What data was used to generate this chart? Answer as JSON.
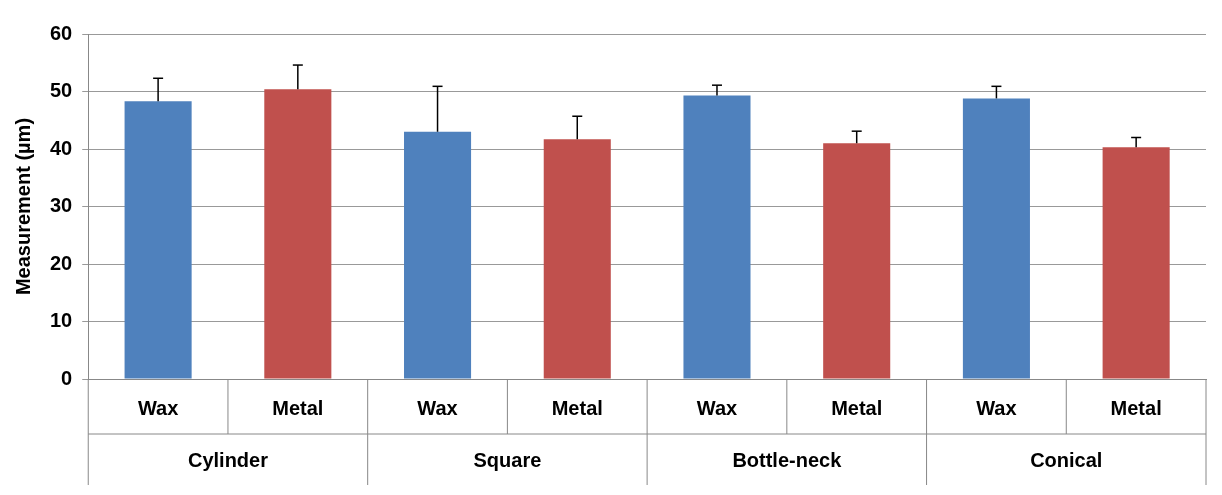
{
  "chart_data": {
    "type": "bar",
    "ylabel": "Measurement (µm)",
    "categories": [
      "Cylinder",
      "Square",
      "Bottle-neck",
      "Conical"
    ],
    "series": [
      {
        "name": "Wax",
        "color": "#4f81bd",
        "values": [
          48.3,
          43.0,
          49.3,
          48.8
        ],
        "errors": [
          [
            48.3,
            52.3
          ],
          [
            43.0,
            50.9
          ],
          [
            49.3,
            51.1
          ],
          [
            48.8,
            50.9
          ]
        ]
      },
      {
        "name": "Metal",
        "color": "#c0504d",
        "values": [
          50.4,
          41.7,
          41.0,
          40.3
        ],
        "errors": [
          [
            50.4,
            54.6
          ],
          [
            41.7,
            45.7
          ],
          [
            41.0,
            43.1
          ],
          [
            40.3,
            42.0
          ]
        ]
      }
    ],
    "ylim": [
      0,
      60
    ],
    "yticks": [
      0,
      10,
      20,
      30,
      40,
      50,
      60
    ],
    "grid": "y",
    "legend": false
  }
}
